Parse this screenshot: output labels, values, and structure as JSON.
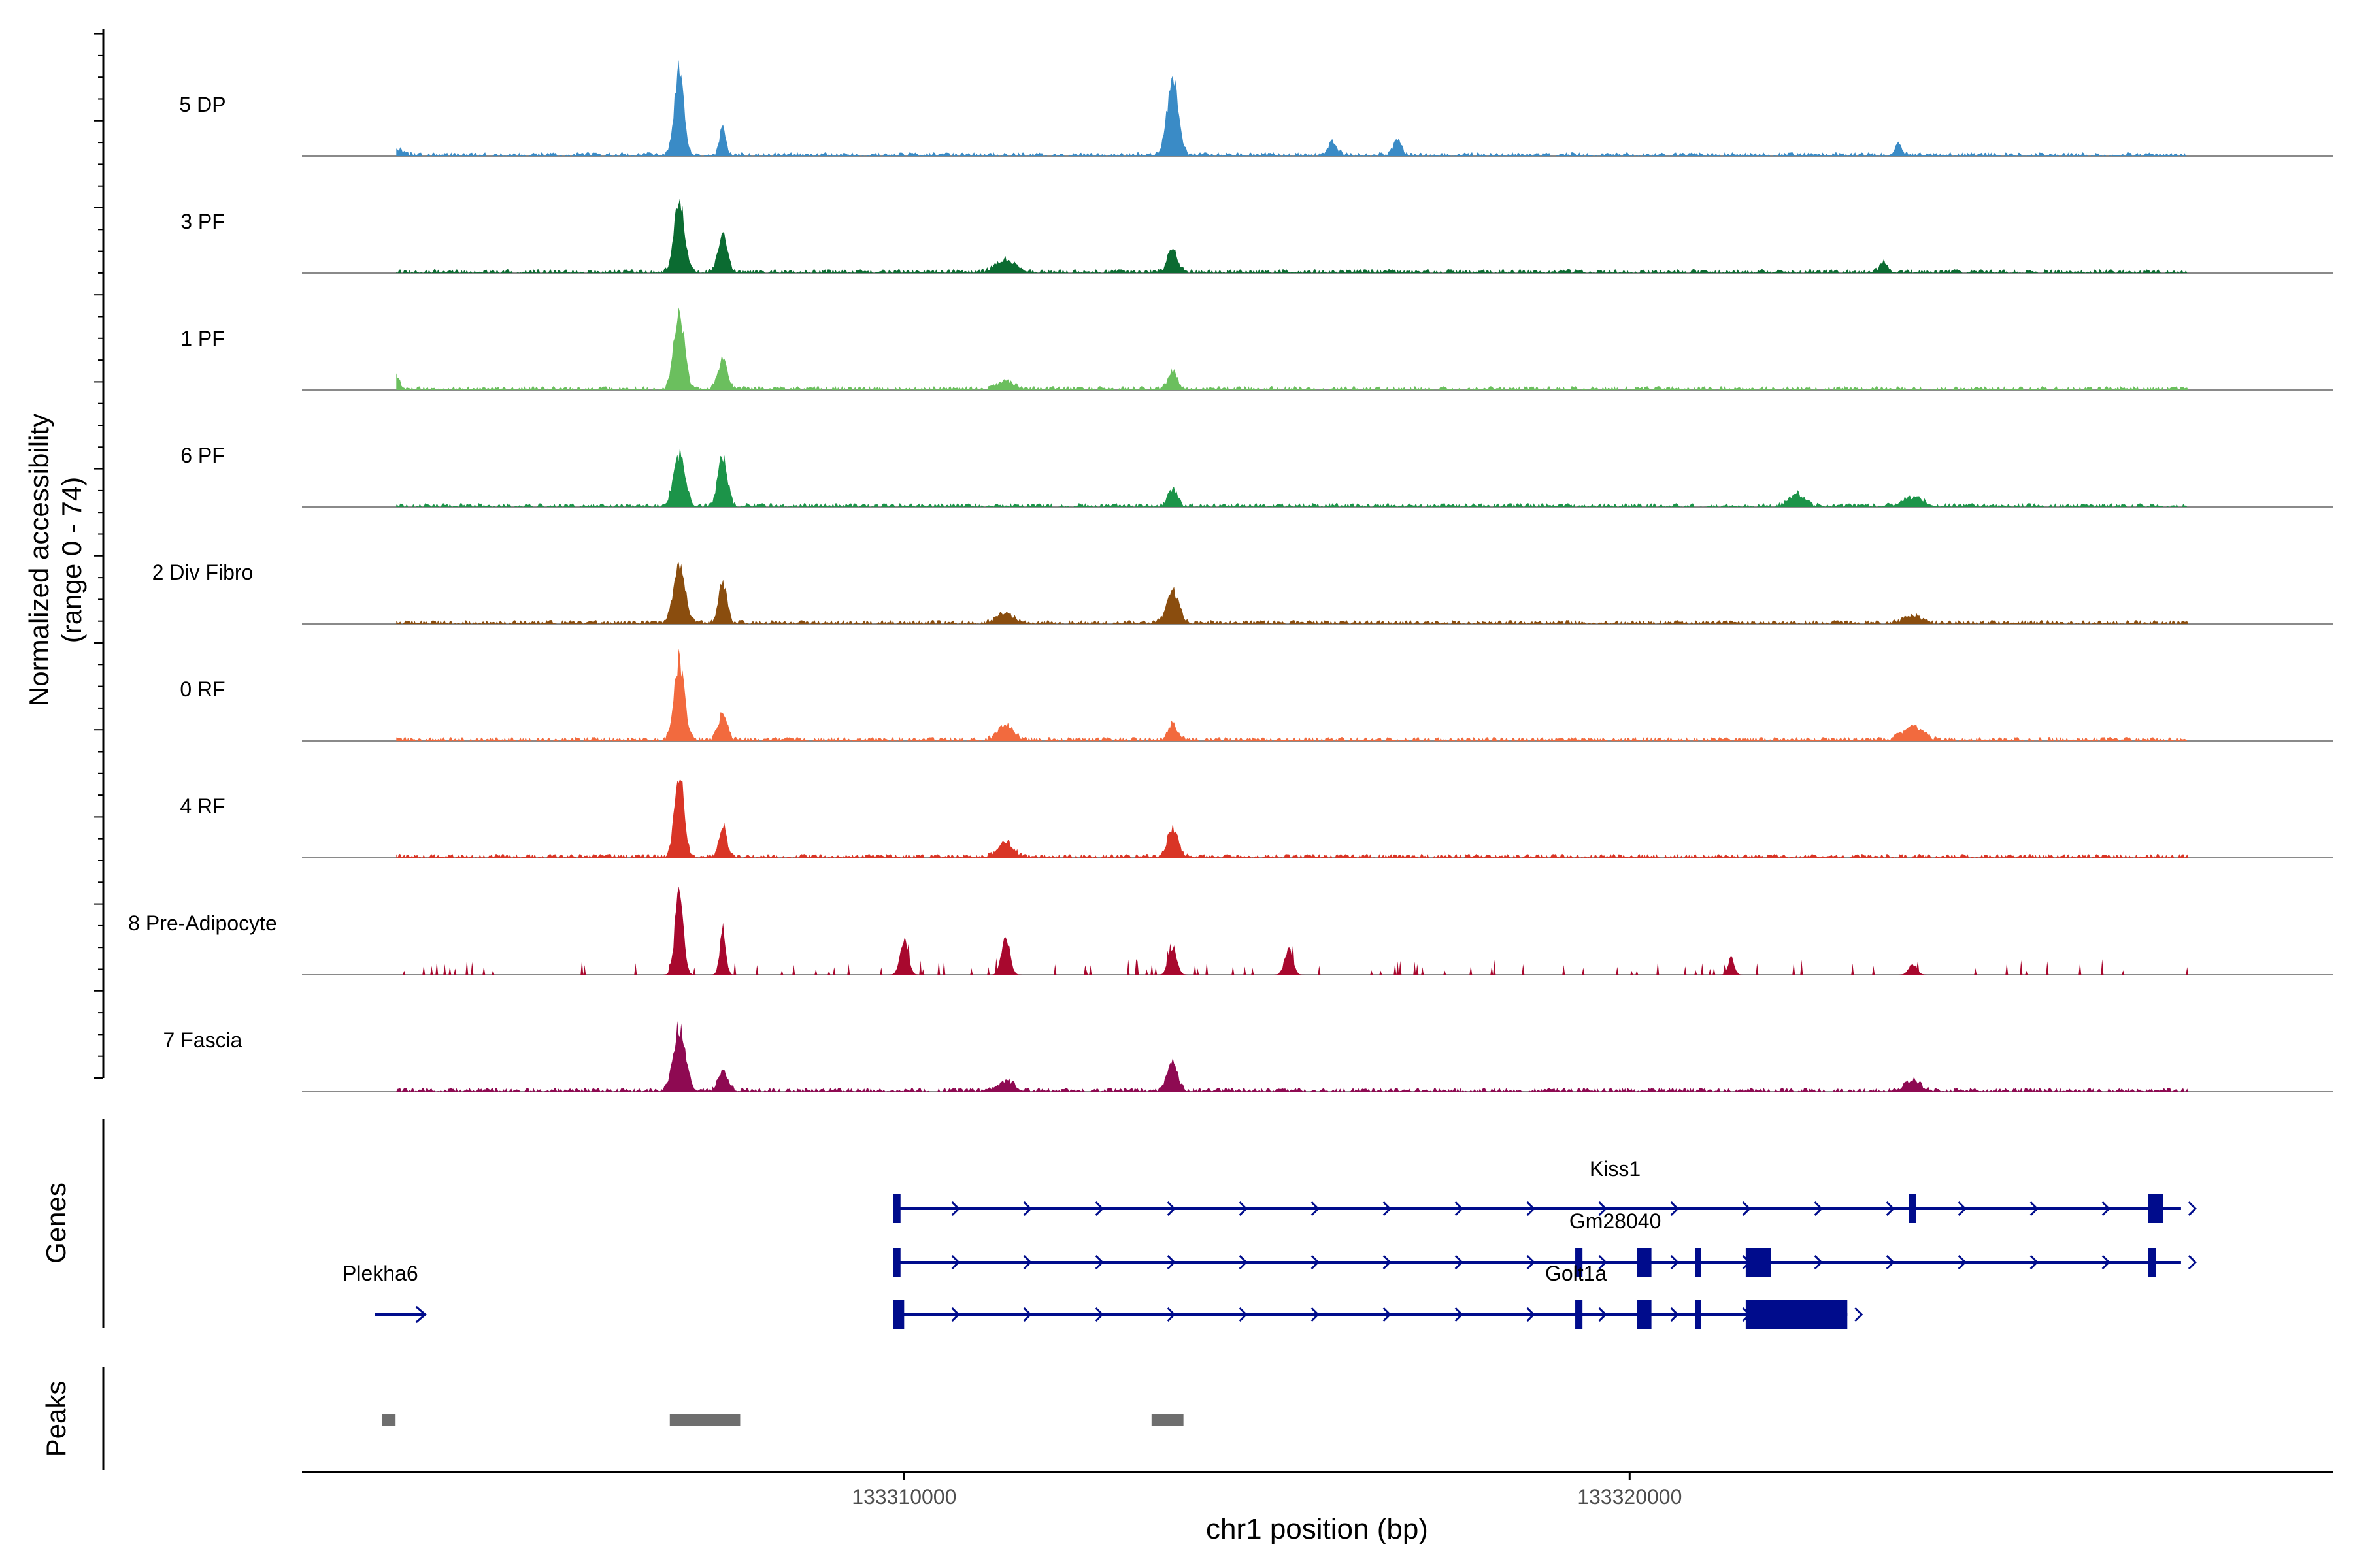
{
  "chart_data": {
    "type": "area",
    "title": "",
    "xlabel": "chr1 position (bp)",
    "ylabel": "Normalized accessibility",
    "ylabel_sub": "(range 0 - 74)",
    "ylim": [
      0,
      74
    ],
    "xlim": [
      133301700,
      133329700
    ],
    "x_ticks": [
      133310000,
      133320000
    ],
    "x_tick_labels": [
      "133310000",
      "133320000"
    ],
    "panel_labels": {
      "genes": "Genes",
      "peaks": "Peaks"
    },
    "tracks": [
      {
        "name": "5 DP",
        "color": "#3A8BC6",
        "peaks": [
          [
            133303000,
            0.08,
            100
          ],
          [
            133306900,
            1.0,
            90
          ],
          [
            133307500,
            0.36,
            60
          ],
          [
            133313700,
            0.87,
            110
          ],
          [
            133315900,
            0.15,
            90
          ],
          [
            133316800,
            0.18,
            80
          ],
          [
            133323700,
            0.13,
            70
          ]
        ]
      },
      {
        "name": "3 PF",
        "color": "#0B6B31",
        "peaks": [
          [
            133306900,
            0.87,
            100
          ],
          [
            133307500,
            0.45,
            90
          ],
          [
            133311400,
            0.14,
            200
          ],
          [
            133313700,
            0.26,
            100
          ],
          [
            133323500,
            0.12,
            80
          ]
        ]
      },
      {
        "name": "1 PF",
        "color": "#6BBF5E",
        "peaks": [
          [
            133303000,
            0.15,
            70
          ],
          [
            133306900,
            0.93,
            100
          ],
          [
            133307500,
            0.35,
            90
          ],
          [
            133313700,
            0.2,
            90
          ],
          [
            133311400,
            0.1,
            150
          ]
        ]
      },
      {
        "name": "6 PF",
        "color": "#1C9449",
        "peaks": [
          [
            133306900,
            0.6,
            110
          ],
          [
            133307500,
            0.6,
            90
          ],
          [
            133313700,
            0.2,
            90
          ],
          [
            133322300,
            0.14,
            150
          ],
          [
            133323900,
            0.1,
            200
          ]
        ]
      },
      {
        "name": "2 Div Fibro",
        "color": "#8A4D0E",
        "peaks": [
          [
            133306900,
            0.72,
            110
          ],
          [
            133307500,
            0.5,
            80
          ],
          [
            133313700,
            0.37,
            120
          ],
          [
            133311400,
            0.12,
            150
          ],
          [
            133323900,
            0.1,
            150
          ]
        ]
      },
      {
        "name": "0 RF",
        "color": "#F26A3E",
        "peaks": [
          [
            133306900,
            0.92,
            100
          ],
          [
            133307500,
            0.3,
            90
          ],
          [
            133311400,
            0.18,
            150
          ],
          [
            133313700,
            0.2,
            90
          ],
          [
            133323900,
            0.15,
            200
          ]
        ]
      },
      {
        "name": "4 RF",
        "color": "#D93526",
        "peaks": [
          [
            133306900,
            1.0,
            90
          ],
          [
            133307500,
            0.38,
            70
          ],
          [
            133313700,
            0.35,
            100
          ],
          [
            133311400,
            0.17,
            150
          ]
        ]
      },
      {
        "name": "8 Pre-Adipocyte",
        "color": "#A8082E",
        "peaks": [
          [
            133306900,
            1.0,
            80
          ],
          [
            133307500,
            0.5,
            60
          ],
          [
            133310000,
            0.4,
            80
          ],
          [
            133311400,
            0.45,
            80
          ],
          [
            133313700,
            0.33,
            80
          ],
          [
            133315300,
            0.3,
            80
          ],
          [
            133321400,
            0.2,
            60
          ],
          [
            133323900,
            0.12,
            80
          ]
        ]
      },
      {
        "name": "7 Fascia",
        "color": "#8E0A52",
        "peaks": [
          [
            133306900,
            0.72,
            120
          ],
          [
            133307500,
            0.22,
            90
          ],
          [
            133313700,
            0.33,
            100
          ],
          [
            133311400,
            0.12,
            150
          ],
          [
            133323900,
            0.12,
            150
          ]
        ]
      }
    ],
    "genes": [
      {
        "name": "Kiss1",
        "strand": "+",
        "start": 133309850,
        "end": 133327600,
        "exons": [
          [
            133309850,
            133309950
          ],
          [
            133323850,
            133323950
          ],
          [
            133327150,
            133327350
          ]
        ]
      },
      {
        "name": "Gm28040",
        "strand": "+",
        "start": 133309850,
        "end": 133327600,
        "exons": [
          [
            133309850,
            133309950
          ],
          [
            133319250,
            133319350
          ],
          [
            133320100,
            133320300
          ],
          [
            133320900,
            133320980
          ],
          [
            133321600,
            133321950
          ],
          [
            133327150,
            133327250
          ]
        ]
      },
      {
        "name": "Golt1a",
        "strand": "+",
        "start": 133309850,
        "end": 133323000,
        "exons": [
          [
            133309850,
            133310000
          ],
          [
            133319250,
            133319350
          ],
          [
            133320100,
            133320300
          ],
          [
            133320900,
            133320980
          ],
          [
            133321600,
            133323000
          ]
        ]
      },
      {
        "name": "Plekha6",
        "strand": "+",
        "start": 133302700,
        "end": 133303400,
        "exons": []
      }
    ],
    "peak_regions": [
      [
        133302800,
        133302990
      ],
      [
        133306770,
        133307740
      ],
      [
        133313410,
        133313850
      ]
    ]
  }
}
